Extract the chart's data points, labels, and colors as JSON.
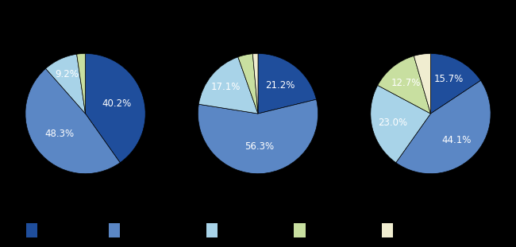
{
  "pies": [
    {
      "values": [
        40.2,
        48.3,
        9.2,
        2.3
      ],
      "colors": [
        "#1f4e9c",
        "#5b87c5",
        "#a8d3e8",
        "#c8dfa0"
      ],
      "labels": [
        "40.2%",
        "48.3%",
        "9.2%",
        ""
      ],
      "label_offsets": [
        0.55,
        0.55,
        0.72,
        0.72
      ]
    },
    {
      "values": [
        21.2,
        56.3,
        17.1,
        4.0,
        1.4
      ],
      "colors": [
        "#1f4e9c",
        "#5b87c5",
        "#a8d3e8",
        "#c8dfa0",
        "#f0edd0"
      ],
      "labels": [
        "21.2%",
        "56.3%",
        "17.1%",
        "",
        ""
      ],
      "label_offsets": [
        0.6,
        0.55,
        0.7,
        0.72,
        0.72
      ]
    },
    {
      "values": [
        15.7,
        44.1,
        23.0,
        12.7,
        4.5
      ],
      "colors": [
        "#1f4e9c",
        "#5b87c5",
        "#a8d3e8",
        "#c8dfa0",
        "#f0edd0"
      ],
      "labels": [
        "15.7%",
        "44.1%",
        "23.0%",
        "12.7%",
        ""
      ],
      "label_offsets": [
        0.65,
        0.62,
        0.65,
        0.65,
        0.72
      ]
    }
  ],
  "legend_colors": [
    "#1f4e9c",
    "#5b87c5",
    "#a8d3e8",
    "#c8dfa0",
    "#f0edd0"
  ],
  "background_color": "#000000",
  "text_color": "#ffffff",
  "label_fontsize": 8.5
}
